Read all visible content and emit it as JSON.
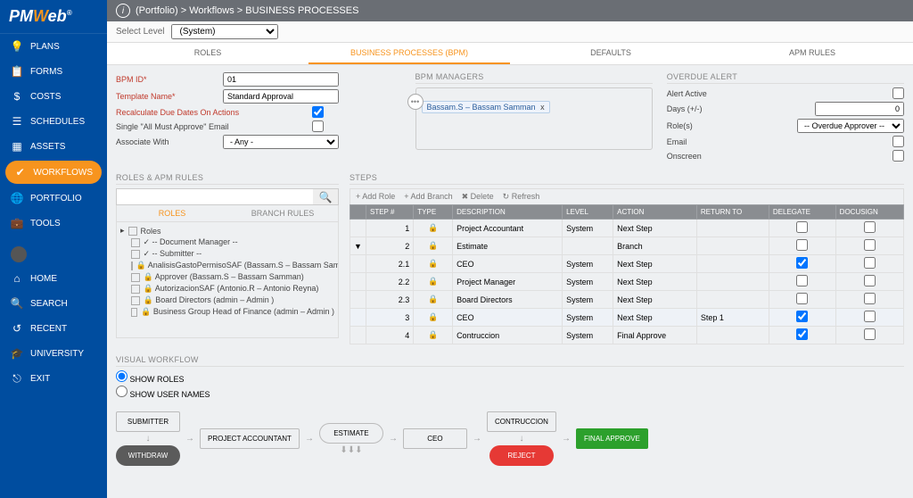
{
  "logo": {
    "pre": "PM",
    "accent": "W",
    "post": "eb"
  },
  "breadcrumb": "(Portfolio) > Workflows > BUSINESS PROCESSES",
  "level": {
    "label": "Select Level",
    "value": "(System)"
  },
  "tabs": [
    "ROLES",
    "BUSINESS PROCESSES (BPM)",
    "DEFAULTS",
    "APM RULES"
  ],
  "nav": [
    {
      "icon": "💡",
      "label": "PLANS"
    },
    {
      "icon": "📋",
      "label": "FORMS"
    },
    {
      "icon": "$",
      "label": "COSTS"
    },
    {
      "icon": "☰",
      "label": "SCHEDULES"
    },
    {
      "icon": "▦",
      "label": "ASSETS"
    },
    {
      "icon": "✔",
      "label": "WORKFLOWS",
      "active": true
    },
    {
      "icon": "🌐",
      "label": "PORTFOLIO"
    },
    {
      "icon": "💼",
      "label": "TOOLS"
    }
  ],
  "nav2": [
    {
      "icon": "⌂",
      "label": "HOME",
      "avatar": true
    },
    {
      "icon": "🔍",
      "label": "SEARCH"
    },
    {
      "icon": "↺",
      "label": "RECENT"
    },
    {
      "icon": "🎓",
      "label": "UNIVERSITY"
    },
    {
      "icon": "⎋",
      "label": "EXIT"
    }
  ],
  "form": {
    "bpm_id": {
      "label": "BPM ID*",
      "value": "01"
    },
    "template": {
      "label": "Template Name*",
      "value": "Standard Approval"
    },
    "recalc": {
      "label": "Recalculate Due Dates On Actions",
      "checked": true
    },
    "single": {
      "label": "Single \"All Must Approve\" Email",
      "checked": false
    },
    "assoc": {
      "label": "Associate With",
      "value": "- Any -"
    }
  },
  "bpm_managers": {
    "head": "BPM MANAGERS",
    "chip": "Bassam.S – Bassam Samman",
    "x": "x"
  },
  "overdue": {
    "head": "OVERDUE ALERT",
    "alert_active": {
      "label": "Alert Active",
      "checked": false
    },
    "days": {
      "label": "Days (+/-)",
      "value": "0"
    },
    "roles": {
      "label": "Role(s)",
      "value": "-- Overdue Approver --"
    },
    "email": {
      "label": "Email",
      "checked": false
    },
    "onscreen": {
      "label": "Onscreen",
      "checked": false
    }
  },
  "roles_rules": {
    "head": "ROLES & APM RULES",
    "subtabs": [
      "ROLES",
      "BRANCH RULES"
    ],
    "placeholder": "",
    "items": [
      "Roles",
      "✓ -- Document Manager --",
      "✓ -- Submitter --",
      "🔒 AnalisisGastoPermisoSAF (Bassam.S – Bassam Sam",
      "🔒 Approver (Bassam.S – Bassam Samman)",
      "🔒 AutorizacionSAF (Antonio.R – Antonio Reyna)",
      "🔒 Board Directors (admin – Admin )",
      "🔒 Business Group Head of Finance (admin – Admin )"
    ]
  },
  "steps": {
    "head": "STEPS",
    "toolbar": {
      "add_role": "+ Add Role",
      "add_branch": "+ Add Branch",
      "delete": "✖ Delete",
      "refresh": "↻ Refresh"
    },
    "columns": [
      "STEP #",
      "TYPE",
      "DESCRIPTION",
      "LEVEL",
      "ACTION",
      "RETURN TO",
      "DELEGATE",
      "DOCUSIGN"
    ],
    "rows": [
      {
        "n": "1",
        "desc": "Project Accountant",
        "lvl": "System",
        "act": "Next Step",
        "ret": "",
        "del": false,
        "doc": false
      },
      {
        "n": "2",
        "desc": "Estimate",
        "lvl": "",
        "act": "Branch",
        "ret": "",
        "del": false,
        "doc": false,
        "expand": true
      },
      {
        "n": "2.1",
        "desc": "CEO",
        "lvl": "System",
        "act": "Next Step",
        "ret": "",
        "del": true,
        "doc": false
      },
      {
        "n": "2.2",
        "desc": "Project Manager",
        "lvl": "System",
        "act": "Next Step",
        "ret": "",
        "del": false,
        "doc": false
      },
      {
        "n": "2.3",
        "desc": "Board Directors",
        "lvl": "System",
        "act": "Next Step",
        "ret": "",
        "del": false,
        "doc": false
      },
      {
        "n": "3",
        "desc": "CEO",
        "lvl": "System",
        "act": "Next Step",
        "ret": "Step 1",
        "del": true,
        "doc": false,
        "hl": true
      },
      {
        "n": "4",
        "desc": "Contruccion",
        "lvl": "System",
        "act": "Final Approve",
        "ret": "",
        "del": true,
        "doc": false
      }
    ]
  },
  "visual": {
    "head": "VISUAL WORKFLOW",
    "opt1": "SHOW ROLES",
    "opt2": "SHOW USER NAMES",
    "boxes": {
      "submitter": "SUBMITTER",
      "pa": "PROJECT ACCOUNTANT",
      "est": "ESTIMATE",
      "ceo": "CEO",
      "con": "CONTRUCCION",
      "fa": "FINAL APPROVE",
      "withdraw": "WITHDRAW",
      "reject": "REJECT"
    }
  }
}
